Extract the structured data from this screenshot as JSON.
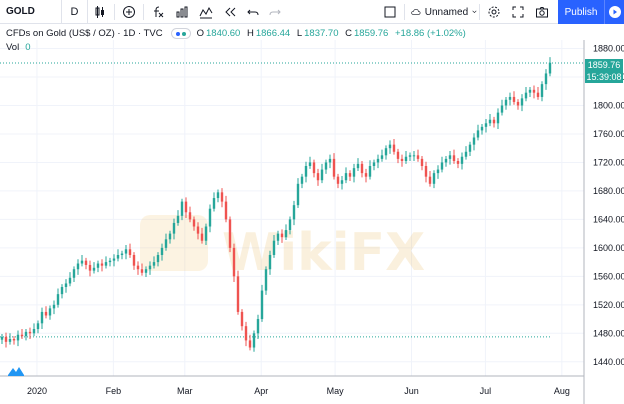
{
  "toolbar": {
    "symbol": "GOLD",
    "interval": "D",
    "layout_name": "Unnamed",
    "publish_label": "Publish",
    "icons": [
      "compare-plus-icon",
      "fx-indicators-icon",
      "bar-chart-icon",
      "alert-icon",
      "replay-icon",
      "undo-icon",
      "redo-icon",
      "layout-square-icon",
      "cloud-icon",
      "gear-icon",
      "fullscreen-icon",
      "camera-icon",
      "play-icon"
    ]
  },
  "legend": {
    "title": "CFDs on Gold (US$ / OZ) · 1D · TVC",
    "open_label": "O",
    "open": "1840.60",
    "high_label": "H",
    "high": "1866.44",
    "low_label": "L",
    "low": "1837.70",
    "close_label": "C",
    "close": "1859.76",
    "change": "+18.86 (+1.02%)",
    "vol_label": "Vol",
    "vol_value": "0"
  },
  "price_tags": {
    "last_price": "1859.76",
    "countdown": "15:39:08"
  },
  "colors": {
    "up": "#26a69a",
    "down": "#ef5350",
    "accent": "#2962ff",
    "grid": "#f0f3fa"
  },
  "chart_data": {
    "type": "candlestick",
    "y_ticks": [
      1440,
      1480,
      1520,
      1560,
      1600,
      1640,
      1680,
      1720,
      1760,
      1800,
      1840,
      1880
    ],
    "ylim": [
      1420,
      1892
    ],
    "x_ticks": [
      "2020",
      "Feb",
      "Mar",
      "Apr",
      "May",
      "Jun",
      "Jul",
      "Aug"
    ],
    "x_tick_days": [
      0,
      31,
      60,
      91,
      121,
      152,
      182,
      213
    ],
    "x_range_days": [
      -15,
      222
    ],
    "reference_line": 1475,
    "last_price": 1859.76,
    "closes": [
      1475,
      1468,
      1472,
      1470,
      1478,
      1476,
      1482,
      1480,
      1486,
      1494,
      1510,
      1505,
      1515,
      1520,
      1535,
      1545,
      1550,
      1558,
      1570,
      1578,
      1582,
      1576,
      1568,
      1572,
      1578,
      1575,
      1580,
      1582,
      1585,
      1590,
      1592,
      1598,
      1590,
      1575,
      1570,
      1565,
      1570,
      1575,
      1580,
      1590,
      1600,
      1612,
      1620,
      1635,
      1645,
      1665,
      1650,
      1640,
      1630,
      1620,
      1610,
      1630,
      1655,
      1670,
      1678,
      1665,
      1640,
      1600,
      1560,
      1510,
      1490,
      1470,
      1460,
      1480,
      1500,
      1540,
      1570,
      1590,
      1610,
      1620,
      1615,
      1625,
      1640,
      1660,
      1690,
      1700,
      1715,
      1720,
      1705,
      1695,
      1710,
      1720,
      1725,
      1700,
      1690,
      1695,
      1705,
      1700,
      1712,
      1718,
      1705,
      1700,
      1715,
      1720,
      1725,
      1730,
      1740,
      1745,
      1735,
      1725,
      1722,
      1728,
      1730,
      1730,
      1725,
      1715,
      1700,
      1690,
      1705,
      1710,
      1720,
      1725,
      1730,
      1722,
      1718,
      1728,
      1735,
      1745,
      1755,
      1765,
      1770,
      1775,
      1780,
      1775,
      1790,
      1800,
      1808,
      1812,
      1805,
      1800,
      1810,
      1818,
      1822,
      1818,
      1812,
      1830,
      1845,
      1860
    ]
  }
}
